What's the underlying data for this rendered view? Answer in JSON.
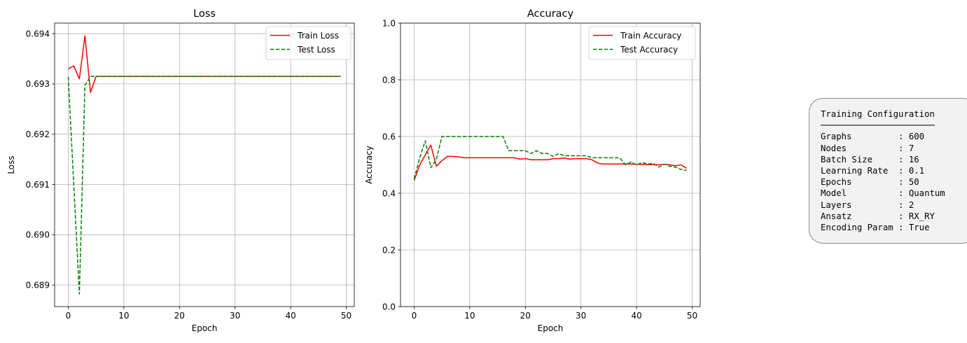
{
  "colors": {
    "train": "#ff0000",
    "test": "#008000",
    "grid": "#b0b0b0",
    "axis": "#000000"
  },
  "chart_data": [
    {
      "type": "line",
      "title": "Loss",
      "xlabel": "Epoch",
      "ylabel": "Loss",
      "xlim": [
        -2.45,
        51.45
      ],
      "ylim": [
        0.68857,
        0.69421
      ],
      "xticks": [
        0,
        10,
        20,
        30,
        40,
        50
      ],
      "yticks": [
        0.689,
        0.69,
        0.691,
        0.692,
        0.693,
        0.694
      ],
      "ytick_labels": [
        "0.689",
        "0.690",
        "0.691",
        "0.692",
        "0.693",
        "0.694"
      ],
      "grid": true,
      "legend": "upper right",
      "x": [
        0,
        1,
        2,
        3,
        4,
        5,
        6,
        7,
        8,
        9,
        10,
        11,
        12,
        13,
        14,
        15,
        16,
        17,
        18,
        19,
        20,
        21,
        22,
        23,
        24,
        25,
        26,
        27,
        28,
        29,
        30,
        31,
        32,
        33,
        34,
        35,
        36,
        37,
        38,
        39,
        40,
        41,
        42,
        43,
        44,
        45,
        46,
        47,
        48,
        49
      ],
      "series": [
        {
          "name": "Train Loss",
          "style": "solid",
          "values": [
            0.6933,
            0.69336,
            0.6931,
            0.69396,
            0.69283,
            0.69315,
            0.69315,
            0.69315,
            0.69315,
            0.69315,
            0.69315,
            0.69315,
            0.69315,
            0.69315,
            0.69315,
            0.69315,
            0.69315,
            0.69315,
            0.69315,
            0.69315,
            0.69315,
            0.69315,
            0.69315,
            0.69315,
            0.69315,
            0.69315,
            0.69315,
            0.69315,
            0.69315,
            0.69315,
            0.69315,
            0.69315,
            0.69315,
            0.69315,
            0.69315,
            0.69315,
            0.69315,
            0.69315,
            0.69315,
            0.69315,
            0.69315,
            0.69315,
            0.69315,
            0.69315,
            0.69315,
            0.69315,
            0.69315,
            0.69315,
            0.69315,
            0.69315
          ]
        },
        {
          "name": "Test Loss",
          "style": "dashed",
          "values": [
            0.69314,
            0.69098,
            0.68882,
            0.69297,
            0.69315,
            0.69315,
            0.69315,
            0.69315,
            0.69315,
            0.69315,
            0.69315,
            0.69315,
            0.69315,
            0.69315,
            0.69315,
            0.69315,
            0.69315,
            0.69315,
            0.69315,
            0.69315,
            0.69315,
            0.69315,
            0.69315,
            0.69315,
            0.69315,
            0.69315,
            0.69315,
            0.69315,
            0.69315,
            0.69315,
            0.69315,
            0.69315,
            0.69315,
            0.69315,
            0.69315,
            0.69315,
            0.69315,
            0.69315,
            0.69315,
            0.69315,
            0.69315,
            0.69315,
            0.69315,
            0.69315,
            0.69315,
            0.69315,
            0.69315,
            0.69315,
            0.69315,
            0.69315
          ]
        }
      ]
    },
    {
      "type": "line",
      "title": "Accuracy",
      "xlabel": "Epoch",
      "ylabel": "Accuracy",
      "xlim": [
        -2.45,
        51.45
      ],
      "ylim": [
        0.0,
        1.0
      ],
      "xticks": [
        0,
        10,
        20,
        30,
        40,
        50
      ],
      "yticks": [
        0.0,
        0.2,
        0.4,
        0.6,
        0.8,
        1.0
      ],
      "ytick_labels": [
        "0.0",
        "0.2",
        "0.4",
        "0.6",
        "0.8",
        "1.0"
      ],
      "grid": true,
      "legend": "upper right",
      "x": [
        0,
        1,
        2,
        3,
        4,
        5,
        6,
        7,
        8,
        9,
        10,
        11,
        12,
        13,
        14,
        15,
        16,
        17,
        18,
        19,
        20,
        21,
        22,
        23,
        24,
        25,
        26,
        27,
        28,
        29,
        30,
        31,
        32,
        33,
        34,
        35,
        36,
        37,
        38,
        39,
        40,
        41,
        42,
        43,
        44,
        45,
        46,
        47,
        48,
        49
      ],
      "series": [
        {
          "name": "Train Accuracy",
          "style": "solid",
          "values": [
            0.445,
            0.5,
            0.535,
            0.57,
            0.495,
            0.515,
            0.53,
            0.53,
            0.528,
            0.525,
            0.525,
            0.525,
            0.525,
            0.525,
            0.525,
            0.525,
            0.525,
            0.525,
            0.525,
            0.52,
            0.522,
            0.518,
            0.518,
            0.518,
            0.518,
            0.522,
            0.522,
            0.524,
            0.52,
            0.522,
            0.522,
            0.522,
            0.518,
            0.506,
            0.503,
            0.503,
            0.503,
            0.503,
            0.503,
            0.503,
            0.502,
            0.502,
            0.501,
            0.501,
            0.5,
            0.502,
            0.5,
            0.497,
            0.5,
            0.488
          ]
        },
        {
          "name": "Test Accuracy",
          "style": "dashed",
          "values": [
            0.45,
            0.525,
            0.585,
            0.49,
            0.52,
            0.6,
            0.6,
            0.6,
            0.6,
            0.6,
            0.6,
            0.6,
            0.6,
            0.6,
            0.6,
            0.6,
            0.6,
            0.55,
            0.55,
            0.55,
            0.55,
            0.54,
            0.55,
            0.54,
            0.54,
            0.53,
            0.54,
            0.532,
            0.532,
            0.532,
            0.532,
            0.532,
            0.525,
            0.525,
            0.525,
            0.525,
            0.525,
            0.525,
            0.5,
            0.51,
            0.5,
            0.508,
            0.503,
            0.505,
            0.492,
            0.502,
            0.495,
            0.492,
            0.484,
            0.48
          ]
        }
      ]
    }
  ],
  "config_panel": {
    "text": "Training Configuration\n──────────────────────\nGraphs         : 600\nNodes          : 7\nBatch Size     : 16\nLearning Rate  : 0.1\nEpochs         : 50\nModel          : Quantum\nLayers         : 2\nAnsatz         : RX_RY\nEncoding Param : True"
  }
}
